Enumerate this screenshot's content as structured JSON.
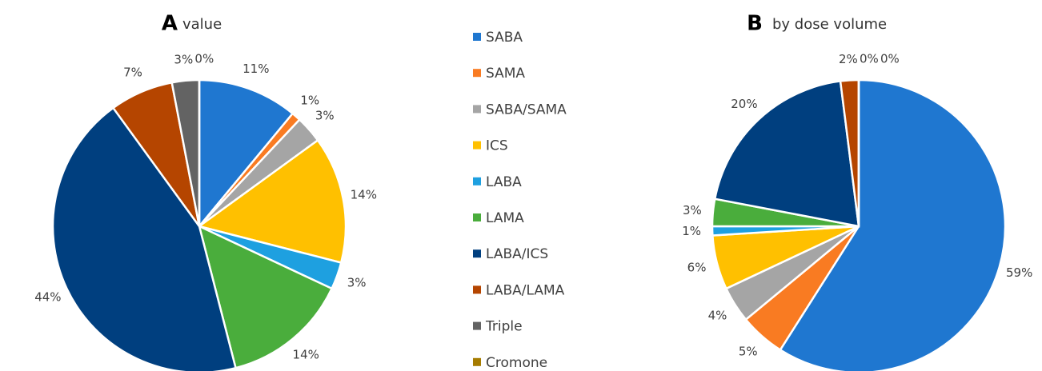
{
  "chart_data": [
    {
      "type": "pie",
      "panel": "A",
      "title": "value",
      "categories": [
        "SABA",
        "SAMA",
        "SABA/SAMA",
        "ICS",
        "LABA",
        "LAMA",
        "LABA/ICS",
        "LABA/LAMA",
        "Triple",
        "Cromone"
      ],
      "colors": [
        "#1f77d0",
        "#f97b22",
        "#a5a5a5",
        "#ffc000",
        "#1ea0e0",
        "#4aad3c",
        "#003f7f",
        "#b54500",
        "#636363",
        "#a67c00"
      ],
      "values": [
        11,
        1,
        3,
        14,
        3,
        14,
        44,
        7,
        3,
        0
      ],
      "value_labels": [
        "11%",
        "1%",
        "3%",
        "14%",
        "3%",
        "14%",
        "44%",
        "7%",
        "3%",
        "0%"
      ]
    },
    {
      "type": "pie",
      "panel": "B",
      "title": "by dose volume",
      "values": [
        59,
        5,
        4,
        6,
        1,
        3,
        20,
        2,
        0,
        0
      ],
      "value_labels": [
        "59%",
        "5%",
        "4%",
        "6%",
        "1%",
        "3%",
        "20%",
        "2%",
        "0%",
        "0%"
      ]
    }
  ]
}
